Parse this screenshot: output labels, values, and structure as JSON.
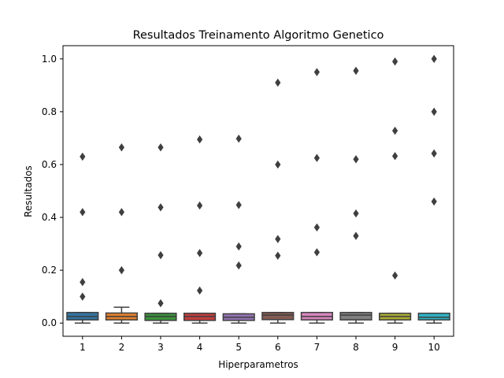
{
  "chart_data": {
    "type": "box",
    "title": "Resultados Treinamento Algoritmo Genetico",
    "xlabel": "Hiperparametros",
    "ylabel": "Resultados",
    "ylim": [
      -0.05,
      1.05
    ],
    "yticks": [
      "0.0",
      "0.2",
      "0.4",
      "0.6",
      "0.8",
      "1.0"
    ],
    "grid": false,
    "categories": [
      "1",
      "2",
      "3",
      "4",
      "5",
      "6",
      "7",
      "8",
      "9",
      "10"
    ],
    "colors": [
      "#3274a1",
      "#e1812c",
      "#3a923a",
      "#c03d3e",
      "#9372b2",
      "#845b53",
      "#d684bd",
      "#7f7f7f",
      "#a9aa35",
      "#2eb2c3"
    ],
    "boxes": [
      {
        "whisker_low": 0.0,
        "q1": 0.012,
        "median": 0.025,
        "q3": 0.04,
        "whisker_high": 0.04,
        "outliers": [
          0.63,
          0.42,
          0.155,
          0.1
        ]
      },
      {
        "whisker_low": 0.0,
        "q1": 0.012,
        "median": 0.025,
        "q3": 0.038,
        "whisker_high": 0.06,
        "outliers": [
          0.665,
          0.42,
          0.2
        ]
      },
      {
        "whisker_low": 0.0,
        "q1": 0.01,
        "median": 0.025,
        "q3": 0.037,
        "whisker_high": 0.037,
        "outliers": [
          0.665,
          0.438,
          0.257,
          0.075
        ]
      },
      {
        "whisker_low": 0.0,
        "q1": 0.01,
        "median": 0.025,
        "q3": 0.037,
        "whisker_high": 0.037,
        "outliers": [
          0.695,
          0.445,
          0.265,
          0.123
        ]
      },
      {
        "whisker_low": 0.0,
        "q1": 0.01,
        "median": 0.022,
        "q3": 0.035,
        "whisker_high": 0.035,
        "outliers": [
          0.698,
          0.447,
          0.29,
          0.218
        ]
      },
      {
        "whisker_low": 0.0,
        "q1": 0.013,
        "median": 0.03,
        "q3": 0.04,
        "whisker_high": 0.04,
        "outliers": [
          0.91,
          0.6,
          0.318,
          0.255
        ]
      },
      {
        "whisker_low": 0.0,
        "q1": 0.012,
        "median": 0.025,
        "q3": 0.04,
        "whisker_high": 0.04,
        "outliers": [
          0.95,
          0.625,
          0.362,
          0.268
        ]
      },
      {
        "whisker_low": 0.0,
        "q1": 0.012,
        "median": 0.03,
        "q3": 0.04,
        "whisker_high": 0.04,
        "outliers": [
          0.955,
          0.62,
          0.415,
          0.33
        ]
      },
      {
        "whisker_low": 0.0,
        "q1": 0.012,
        "median": 0.025,
        "q3": 0.037,
        "whisker_high": 0.037,
        "outliers": [
          0.99,
          0.728,
          0.632,
          0.18
        ]
      },
      {
        "whisker_low": 0.0,
        "q1": 0.012,
        "median": 0.022,
        "q3": 0.037,
        "whisker_high": 0.037,
        "outliers": [
          1.0,
          0.8,
          0.642,
          0.46
        ]
      }
    ]
  }
}
